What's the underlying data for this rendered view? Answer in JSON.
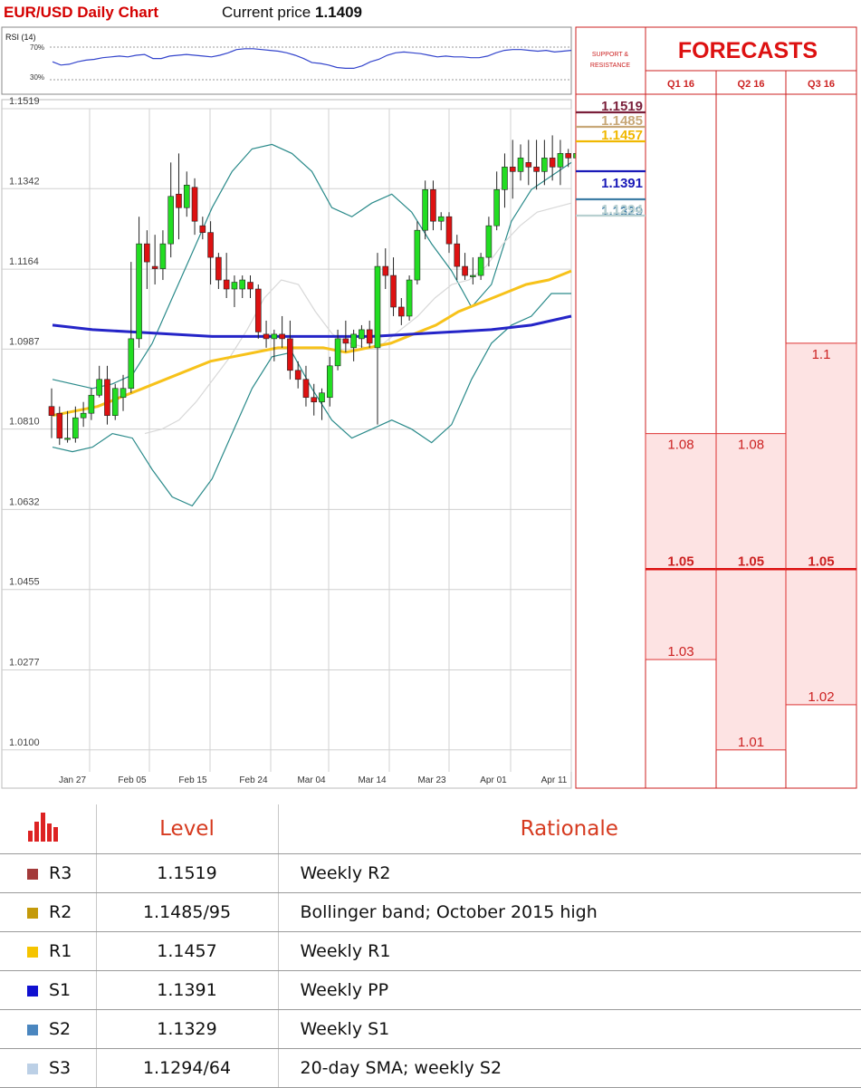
{
  "header": {
    "title": "EUR/USD Daily Chart",
    "current_price_label": "Current price",
    "current_price_value": "1.1409"
  },
  "rsi": {
    "label": "RSI (14)",
    "levels": [
      "70%",
      "30%"
    ],
    "values": [
      52,
      48,
      49,
      52,
      54,
      55,
      57,
      58,
      59,
      58,
      60,
      61,
      56,
      56,
      59,
      60,
      61,
      60,
      59,
      58,
      60,
      63,
      67,
      68,
      68,
      67,
      66,
      65,
      63,
      60,
      56,
      51,
      50,
      48,
      45,
      44,
      44,
      47,
      52,
      55,
      60,
      63,
      64,
      63,
      62,
      60,
      58,
      59,
      58,
      58,
      57,
      57,
      59,
      63,
      66,
      67,
      67,
      66,
      65,
      66,
      64,
      65,
      66
    ]
  },
  "chart_data": {
    "type": "candlestick",
    "title": "EUR/USD Daily Chart",
    "y_ticks": [
      "1.1519",
      "1.1342",
      "1.1164",
      "1.0987",
      "1.0810",
      "1.0632",
      "1.0455",
      "1.0277",
      "1.0100"
    ],
    "ylim": [
      1.001,
      1.1541
    ],
    "x_ticks": [
      "Jan 27",
      "Feb 05",
      "Feb 15",
      "Feb 24",
      "Mar 04",
      "Mar 14",
      "Mar 23",
      "Apr 01",
      "Apr 11"
    ],
    "grid": true,
    "candles": [
      {
        "o": 1.086,
        "h": 1.09,
        "l": 1.079,
        "c": 1.084
      },
      {
        "o": 1.0845,
        "h": 1.086,
        "l": 1.0775,
        "c": 1.079
      },
      {
        "o": 1.079,
        "h": 1.085,
        "l": 1.078,
        "c": 1.079
      },
      {
        "o": 1.079,
        "h": 1.086,
        "l": 1.078,
        "c": 1.0835
      },
      {
        "o": 1.0835,
        "h": 1.087,
        "l": 1.0815,
        "c": 1.0845
      },
      {
        "o": 1.0845,
        "h": 1.09,
        "l": 1.083,
        "c": 1.0885
      },
      {
        "o": 1.0885,
        "h": 1.095,
        "l": 1.088,
        "c": 1.092
      },
      {
        "o": 1.092,
        "h": 1.095,
        "l": 1.082,
        "c": 1.084
      },
      {
        "o": 1.084,
        "h": 1.091,
        "l": 1.083,
        "c": 1.09
      },
      {
        "o": 1.088,
        "h": 1.093,
        "l": 1.085,
        "c": 1.09
      },
      {
        "o": 1.09,
        "h": 1.118,
        "l": 1.089,
        "c": 1.101
      },
      {
        "o": 1.101,
        "h": 1.128,
        "l": 1.099,
        "c": 1.122
      },
      {
        "o": 1.122,
        "h": 1.125,
        "l": 1.112,
        "c": 1.118
      },
      {
        "o": 1.117,
        "h": 1.124,
        "l": 1.113,
        "c": 1.1165
      },
      {
        "o": 1.1165,
        "h": 1.125,
        "l": 1.114,
        "c": 1.122
      },
      {
        "o": 1.122,
        "h": 1.14,
        "l": 1.119,
        "c": 1.1325
      },
      {
        "o": 1.133,
        "h": 1.142,
        "l": 1.123,
        "c": 1.13
      },
      {
        "o": 1.13,
        "h": 1.138,
        "l": 1.128,
        "c": 1.135
      },
      {
        "o": 1.1345,
        "h": 1.1365,
        "l": 1.124,
        "c": 1.127
      },
      {
        "o": 1.126,
        "h": 1.128,
        "l": 1.123,
        "c": 1.1245
      },
      {
        "o": 1.1245,
        "h": 1.127,
        "l": 1.113,
        "c": 1.119
      },
      {
        "o": 1.119,
        "h": 1.12,
        "l": 1.112,
        "c": 1.114
      },
      {
        "o": 1.114,
        "h": 1.12,
        "l": 1.11,
        "c": 1.112
      },
      {
        "o": 1.112,
        "h": 1.115,
        "l": 1.108,
        "c": 1.1135
      },
      {
        "o": 1.112,
        "h": 1.115,
        "l": 1.11,
        "c": 1.114
      },
      {
        "o": 1.1135,
        "h": 1.115,
        "l": 1.11,
        "c": 1.112
      },
      {
        "o": 1.112,
        "h": 1.113,
        "l": 1.101,
        "c": 1.1025
      },
      {
        "o": 1.102,
        "h": 1.105,
        "l": 1.099,
        "c": 1.101
      },
      {
        "o": 1.101,
        "h": 1.103,
        "l": 1.096,
        "c": 1.102
      },
      {
        "o": 1.102,
        "h": 1.106,
        "l": 1.099,
        "c": 1.101
      },
      {
        "o": 1.101,
        "h": 1.105,
        "l": 1.092,
        "c": 1.094
      },
      {
        "o": 1.094,
        "h": 1.096,
        "l": 1.09,
        "c": 1.092
      },
      {
        "o": 1.092,
        "h": 1.095,
        "l": 1.086,
        "c": 1.088
      },
      {
        "o": 1.088,
        "h": 1.091,
        "l": 1.084,
        "c": 1.087
      },
      {
        "o": 1.087,
        "h": 1.09,
        "l": 1.083,
        "c": 1.089
      },
      {
        "o": 1.088,
        "h": 1.097,
        "l": 1.086,
        "c": 1.095
      },
      {
        "o": 1.095,
        "h": 1.103,
        "l": 1.094,
        "c": 1.101
      },
      {
        "o": 1.101,
        "h": 1.105,
        "l": 1.098,
        "c": 1.1
      },
      {
        "o": 1.099,
        "h": 1.103,
        "l": 1.096,
        "c": 1.102
      },
      {
        "o": 1.101,
        "h": 1.104,
        "l": 1.099,
        "c": 1.103
      },
      {
        "o": 1.103,
        "h": 1.105,
        "l": 1.099,
        "c": 1.1
      },
      {
        "o": 1.099,
        "h": 1.12,
        "l": 1.082,
        "c": 1.117
      },
      {
        "o": 1.117,
        "h": 1.121,
        "l": 1.112,
        "c": 1.115
      },
      {
        "o": 1.115,
        "h": 1.119,
        "l": 1.106,
        "c": 1.108
      },
      {
        "o": 1.108,
        "h": 1.11,
        "l": 1.104,
        "c": 1.106
      },
      {
        "o": 1.106,
        "h": 1.115,
        "l": 1.105,
        "c": 1.114
      },
      {
        "o": 1.114,
        "h": 1.127,
        "l": 1.113,
        "c": 1.125
      },
      {
        "o": 1.125,
        "h": 1.136,
        "l": 1.123,
        "c": 1.134
      },
      {
        "o": 1.134,
        "h": 1.136,
        "l": 1.125,
        "c": 1.127
      },
      {
        "o": 1.127,
        "h": 1.129,
        "l": 1.125,
        "c": 1.128
      },
      {
        "o": 1.128,
        "h": 1.129,
        "l": 1.12,
        "c": 1.122
      },
      {
        "o": 1.122,
        "h": 1.124,
        "l": 1.114,
        "c": 1.117
      },
      {
        "o": 1.117,
        "h": 1.12,
        "l": 1.114,
        "c": 1.115
      },
      {
        "o": 1.115,
        "h": 1.119,
        "l": 1.113,
        "c": 1.115
      },
      {
        "o": 1.115,
        "h": 1.12,
        "l": 1.114,
        "c": 1.119
      },
      {
        "o": 1.119,
        "h": 1.128,
        "l": 1.117,
        "c": 1.126
      },
      {
        "o": 1.126,
        "h": 1.138,
        "l": 1.125,
        "c": 1.134
      },
      {
        "o": 1.134,
        "h": 1.142,
        "l": 1.13,
        "c": 1.139
      },
      {
        "o": 1.139,
        "h": 1.145,
        "l": 1.132,
        "c": 1.138
      },
      {
        "o": 1.138,
        "h": 1.144,
        "l": 1.136,
        "c": 1.141
      },
      {
        "o": 1.14,
        "h": 1.145,
        "l": 1.135,
        "c": 1.139
      },
      {
        "o": 1.139,
        "h": 1.145,
        "l": 1.134,
        "c": 1.138
      },
      {
        "o": 1.138,
        "h": 1.145,
        "l": 1.135,
        "c": 1.141
      },
      {
        "o": 1.141,
        "h": 1.146,
        "l": 1.136,
        "c": 1.139
      },
      {
        "o": 1.139,
        "h": 1.145,
        "l": 1.135,
        "c": 1.142
      },
      {
        "o": 1.142,
        "h": 1.143,
        "l": 1.139,
        "c": 1.141
      },
      {
        "o": 1.141,
        "h": 1.143,
        "l": 1.14,
        "c": 1.142
      }
    ],
    "bollinger_upper": [
      1.092,
      1.091,
      1.09,
      1.091,
      1.093,
      1.1,
      1.11,
      1.12,
      1.13,
      1.138,
      1.143,
      1.144,
      1.142,
      1.138,
      1.13,
      1.128,
      1.131,
      1.133,
      1.129,
      1.122,
      1.116,
      1.108,
      1.113,
      1.127,
      1.134,
      1.137,
      1.14
    ],
    "bollinger_lower": [
      1.077,
      1.076,
      1.077,
      1.08,
      1.079,
      1.072,
      1.066,
      1.064,
      1.07,
      1.08,
      1.09,
      1.097,
      1.098,
      1.09,
      1.083,
      1.079,
      1.081,
      1.083,
      1.081,
      1.078,
      1.082,
      1.092,
      1.1,
      1.104,
      1.106,
      1.111,
      1.111
    ],
    "sma20": [
      1.08,
      1.081,
      1.083,
      1.087,
      1.092,
      1.097,
      1.103,
      1.11,
      1.114,
      1.113,
      1.107,
      1.102,
      1.1,
      1.099,
      1.1,
      1.103,
      1.106,
      1.11,
      1.113,
      1.114,
      1.117,
      1.122,
      1.126,
      1.129,
      1.13,
      1.131
    ],
    "sma55": [
      1.084,
      1.085,
      1.086,
      1.088,
      1.09,
      1.092,
      1.094,
      1.096,
      1.097,
      1.098,
      1.099,
      1.099,
      1.099,
      1.098,
      1.099,
      1.1,
      1.102,
      1.104,
      1.107,
      1.109,
      1.111,
      1.113,
      1.114,
      1.116
    ],
    "sma200": [
      1.104,
      1.103,
      1.1025,
      1.102,
      1.1015,
      1.1015,
      1.1015,
      1.1015,
      1.1015,
      1.102,
      1.1025,
      1.103,
      1.104,
      1.106
    ],
    "support_resistance": [
      {
        "label": "1.1519",
        "value": 1.1519,
        "color": "#7a1f3a"
      },
      {
        "label": "1.1485",
        "value": 1.1485,
        "color": "#c8a878"
      },
      {
        "label": "1.1457",
        "value": 1.1457,
        "color": "#f0b800"
      },
      {
        "label": "1.1391",
        "value": 1.1391,
        "color": "#1a1ab8"
      },
      {
        "label": "1.1329",
        "value": 1.1329,
        "color": "#3f7ea6"
      },
      {
        "label": "1.1294",
        "value": 1.1294,
        "color": "#b8d0d0"
      }
    ]
  },
  "forecasts": {
    "title": "FORECASTS",
    "sr_header": [
      "SUPPORT &",
      "RESISTANCE"
    ],
    "columns": [
      {
        "label": "Q1 16",
        "high": 1.08,
        "mid": 1.05,
        "low": 1.03,
        "high_label": "1.08",
        "mid_label": "1.05",
        "low_label": "1.03"
      },
      {
        "label": "Q2 16",
        "high": 1.08,
        "mid": 1.05,
        "low": 1.01,
        "high_label": "1.08",
        "mid_label": "1.05",
        "low_label": "1.01"
      },
      {
        "label": "Q3 16",
        "high": 1.1,
        "mid": 1.05,
        "low": 1.02,
        "high_label": "1.1",
        "mid_label": "1.05",
        "low_label": "1.02"
      }
    ]
  },
  "colors": {
    "bull": "#22dd22",
    "bear": "#dd1111",
    "bollinger": "#2a8a8a",
    "sma20": "#d8d8d8",
    "sma55": "#f7c21a",
    "sma200": "#2525c8",
    "forecast_fill": "#fde3e3",
    "forecast_border": "#dd3333",
    "rsi_line": "#3344cc"
  },
  "table": {
    "headers": [
      "Level",
      "Rationale"
    ],
    "header_icon": "bar-chart-icon",
    "rows": [
      {
        "key": "R3",
        "level": "1.1519",
        "rationale": "Weekly R2",
        "color": "#a33a3a"
      },
      {
        "key": "R2",
        "level": "1.1485/95",
        "rationale": "Bollinger band; October 2015 high",
        "color": "#c49a0a"
      },
      {
        "key": "R1",
        "level": "1.1457",
        "rationale": "Weekly R1",
        "color": "#f5c400"
      },
      {
        "key": "S1",
        "level": "1.1391",
        "rationale": "Weekly PP",
        "color": "#1010d0"
      },
      {
        "key": "S2",
        "level": "1.1329",
        "rationale": "Weekly S1",
        "color": "#4a86bf"
      },
      {
        "key": "S3",
        "level": "1.1294/64",
        "rationale": "20-day SMA; weekly S2",
        "color": "#bcd0e6"
      }
    ]
  }
}
